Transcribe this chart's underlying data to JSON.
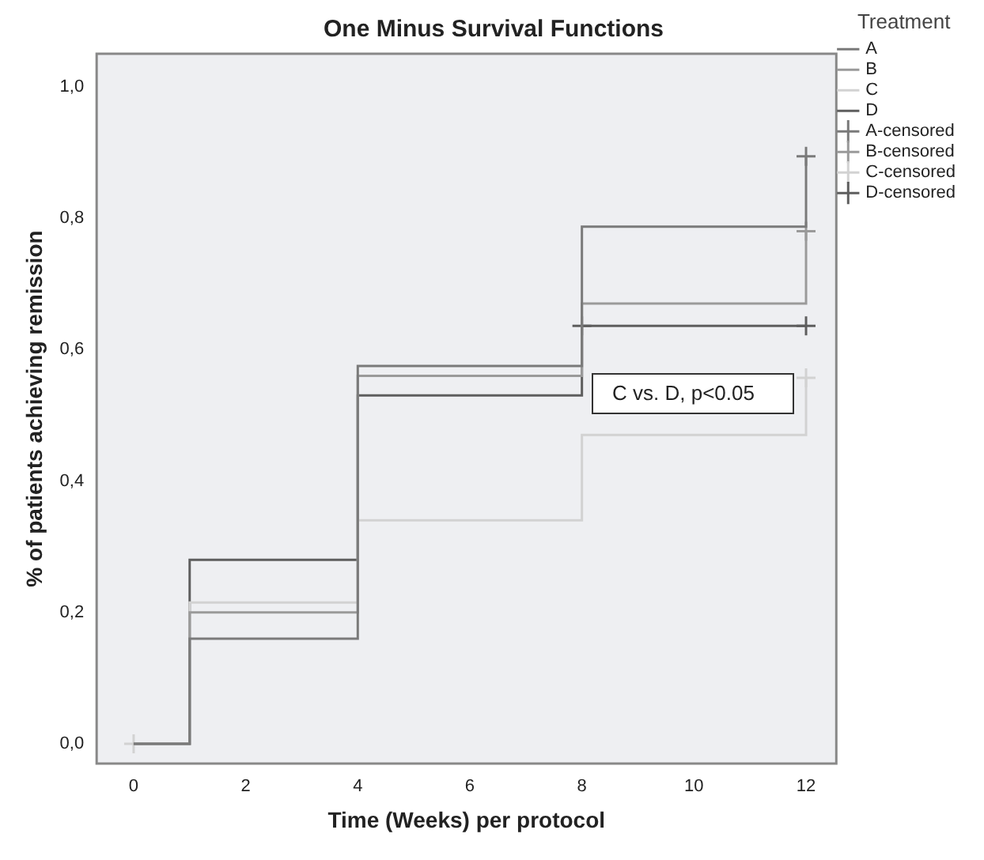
{
  "chart_data": {
    "type": "step",
    "title": "One Minus Survival Functions",
    "xlabel": "Time (Weeks) per protocol",
    "ylabel": "% of patients achieving remission",
    "legend_title": "Treatment",
    "legend": "top right",
    "grid": false,
    "line_style": "solid",
    "xlim": [
      -0.66,
      12.54
    ],
    "xticks": [
      0,
      2,
      4,
      6,
      8,
      10,
      12
    ],
    "ylim": [
      -0.03,
      1.05
    ],
    "yticks": [
      {
        "value": 0,
        "label": "0,0"
      },
      {
        "value": 0.2,
        "label": "0,2"
      },
      {
        "value": 0.4,
        "label": "0,4"
      },
      {
        "value": 0.6,
        "label": "0,6"
      },
      {
        "value": 0.8,
        "label": "0,8"
      },
      {
        "value": 1,
        "label": "1,0"
      }
    ],
    "series": [
      {
        "name": "A",
        "color": "#7a7a7a",
        "x": [
          0,
          1,
          4,
          8,
          12
        ],
        "values": [
          0,
          0.16,
          0.575,
          0.787,
          0.894
        ]
      },
      {
        "name": "B",
        "color": "#9a9a9a",
        "x": [
          0,
          1,
          4,
          8,
          12
        ],
        "values": [
          0,
          0.2,
          0.56,
          0.67,
          0.78
        ]
      },
      {
        "name": "C",
        "color": "#d2d2d2",
        "x": [
          0,
          1,
          4,
          8,
          12
        ],
        "values": [
          0,
          0.215,
          0.34,
          0.47,
          0.557
        ]
      },
      {
        "name": "D",
        "color": "#5e5e5e",
        "x": [
          0,
          1,
          4,
          8,
          12
        ],
        "values": [
          0,
          0.28,
          0.53,
          0.636,
          0.636
        ]
      },
      {
        "name": "A-censored",
        "type": "scatter",
        "marker": "cross",
        "color": "#7a7a7a",
        "x": [
          12
        ],
        "values": [
          0.894
        ]
      },
      {
        "name": "B-censored",
        "type": "scatter",
        "marker": "cross",
        "color": "#9a9a9a",
        "x": [
          12
        ],
        "values": [
          0.78
        ]
      },
      {
        "name": "C-censored",
        "type": "scatter",
        "marker": "cross",
        "color": "#d2d2d2",
        "x": [
          0,
          12
        ],
        "values": [
          0,
          0.557
        ]
      },
      {
        "name": "D-censored",
        "type": "scatter",
        "marker": "cross",
        "color": "#5e5e5e",
        "x": [
          8,
          12
        ],
        "values": [
          0.636,
          0.636
        ]
      }
    ],
    "annotations": [
      "C vs. D, p<0.05"
    ]
  }
}
